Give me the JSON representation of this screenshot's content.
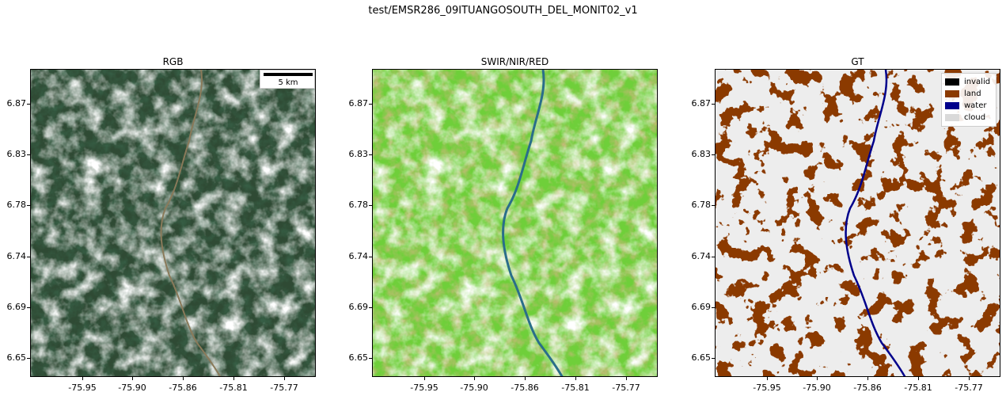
{
  "figure": {
    "title": "test/EMSR286_09ITUANGOSOUTH_DEL_MONIT02_v1"
  },
  "panels": [
    {
      "title": "RGB"
    },
    {
      "title": "SWIR/NIR/RED"
    },
    {
      "title": "GT"
    }
  ],
  "axes": {
    "y_ticks": [
      "6.87",
      "6.83",
      "6.78",
      "6.74",
      "6.69",
      "6.65"
    ],
    "x_ticks": [
      "-75.95",
      "-75.90",
      "-75.86",
      "-75.81",
      "-75.77"
    ]
  },
  "scalebar": {
    "label": "5 km"
  },
  "legend": {
    "items": [
      {
        "label": "invalid",
        "color": "#000000"
      },
      {
        "label": "land",
        "color": "#8b3a00"
      },
      {
        "label": "water",
        "color": "#00008b"
      },
      {
        "label": "cloud",
        "color": "#d9d9d9"
      }
    ]
  }
}
